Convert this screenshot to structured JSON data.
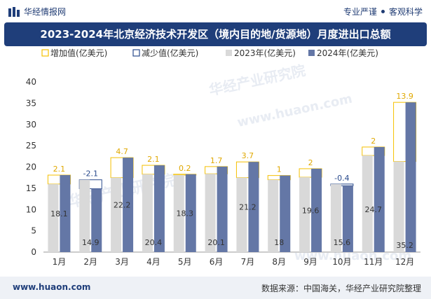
{
  "header": {
    "brand": "华经情报网",
    "slogan_1": "专业严谨",
    "slogan_2": "客观科学"
  },
  "footer": {
    "website": "www.huaon.com",
    "source": "数据来源：中国海关，华经产业研究院整理"
  },
  "watermarks": [
    "华经产业研究院",
    "www.huaon.com"
  ],
  "colors": {
    "increase": "#f5c000",
    "decrease": "#2a4b8d",
    "y2023": "#d9d9d9",
    "y2024": "#6477a6",
    "title_bg": "#1f3e7a"
  },
  "chart_data": {
    "type": "bar",
    "title": "2023-2024年北京经济技术开发区（境内目的地/货源地）月度进出口总额",
    "xlabel": "",
    "ylabel": "",
    "ylim": [
      0,
      40
    ],
    "yticks": [
      0,
      5,
      10,
      15,
      20,
      25,
      30,
      35,
      40
    ],
    "categories": [
      "1月",
      "2月",
      "3月",
      "4月",
      "5月",
      "6月",
      "7月",
      "8月",
      "9月",
      "10月",
      "11月",
      "12月"
    ],
    "legend": [
      "增加值(亿美元)",
      "减少值(亿美元)",
      "2023年(亿美元)",
      "2024年(亿美元)"
    ],
    "series": [
      {
        "name": "2023年(亿美元)",
        "values": [
          16.0,
          17.0,
          17.5,
          18.3,
          18.1,
          18.4,
          17.5,
          17.0,
          17.6,
          16.0,
          22.7,
          21.3
        ]
      },
      {
        "name": "2024年(亿美元)",
        "values": [
          18.1,
          14.9,
          22.2,
          20.4,
          18.3,
          20.1,
          21.2,
          18,
          19.6,
          15.6,
          24.7,
          35.2
        ]
      }
    ],
    "change_labels": [
      "2.1",
      "-2.1",
      "4.7",
      "2.1",
      "0.2",
      "1.7",
      "3.7",
      "1",
      "2",
      "-0.4",
      "2",
      "13.9"
    ],
    "value_labels": [
      "18.1",
      "14.9",
      "22.2",
      "20.4",
      "18.3",
      "20.1",
      "21.2",
      "18",
      "19.6",
      "15.6",
      "24.7",
      "35.2"
    ]
  }
}
